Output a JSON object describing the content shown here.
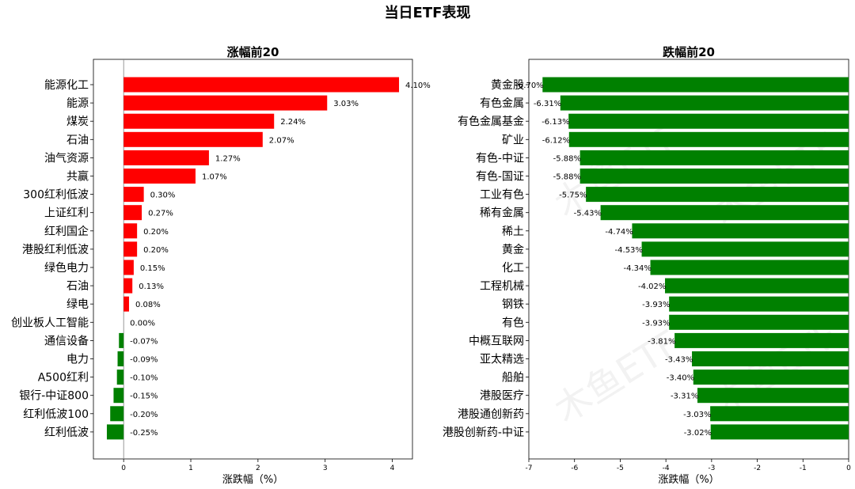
{
  "page": {
    "title": "当日ETF表现",
    "watermark": "木鱼ETF"
  },
  "colors": {
    "up": "#ff0000",
    "down": "#008000",
    "axis": "#000000",
    "zero_line": "#808080"
  },
  "chart_data": [
    {
      "type": "bar",
      "orientation": "horizontal",
      "title": "涨幅前20",
      "xlabel": "涨跌幅（%）",
      "ylabel": "",
      "xlim": [
        -0.45,
        4.3
      ],
      "xticks": [
        0,
        1,
        2,
        3,
        4
      ],
      "grid": false,
      "categories": [
        "能源化工",
        "能源",
        "煤炭",
        "石油",
        "油气资源",
        "共赢",
        "300红利低波",
        "上证红利",
        "红利国企",
        "港股红利低波",
        "绿色电力",
        "石油",
        "绿电",
        "创业板人工智能",
        "通信设备",
        "电力",
        "A500红利",
        "银行-中证800",
        "红利低波100",
        "红利低波"
      ],
      "values": [
        4.1,
        3.03,
        2.24,
        2.07,
        1.27,
        1.07,
        0.3,
        0.27,
        0.2,
        0.2,
        0.15,
        0.13,
        0.08,
        0.0,
        -0.07,
        -0.09,
        -0.1,
        -0.15,
        -0.2,
        -0.25
      ],
      "labels": [
        "4.10%",
        "3.03%",
        "2.24%",
        "2.07%",
        "1.27%",
        "1.07%",
        "0.30%",
        "0.27%",
        "0.20%",
        "0.20%",
        "0.15%",
        "0.13%",
        "0.08%",
        "0.00%",
        "-0.07%",
        "-0.09%",
        "-0.10%",
        "-0.15%",
        "-0.20%",
        "-0.25%"
      ]
    },
    {
      "type": "bar",
      "orientation": "horizontal",
      "title": "跌幅前20",
      "xlabel": "涨跌幅（%）",
      "ylabel": "",
      "xlim": [
        -7.0,
        0
      ],
      "xticks": [
        -7,
        -6,
        -5,
        -4,
        -3,
        -2,
        -1,
        0
      ],
      "grid": false,
      "categories": [
        "黄金股",
        "有色金属",
        "有色金属基金",
        "矿业",
        "有色-中证",
        "有色-国证",
        "工业有色",
        "稀有金属",
        "稀土",
        "黄金",
        "化工",
        "工程机械",
        "钢铁",
        "有色",
        "中概互联网",
        "亚太精选",
        "船舶",
        "港股医疗",
        "港股通创新药",
        "港股创新药-中证"
      ],
      "values": [
        -6.7,
        -6.31,
        -6.13,
        -6.12,
        -5.88,
        -5.88,
        -5.75,
        -5.43,
        -4.74,
        -4.53,
        -4.34,
        -4.02,
        -3.93,
        -3.93,
        -3.81,
        -3.43,
        -3.4,
        -3.31,
        -3.03,
        -3.02
      ],
      "labels": [
        "-6.70%",
        "-6.31%",
        "-6.13%",
        "-6.12%",
        "-5.88%",
        "-5.88%",
        "-5.75%",
        "-5.43%",
        "-4.74%",
        "-4.53%",
        "-4.34%",
        "-4.02%",
        "-3.93%",
        "-3.93%",
        "-3.81%",
        "-3.43%",
        "-3.40%",
        "-3.31%",
        "-3.03%",
        "-3.02%"
      ]
    }
  ]
}
